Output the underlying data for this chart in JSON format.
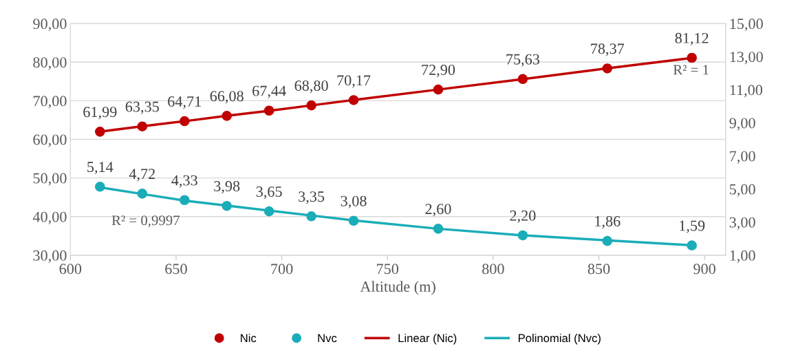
{
  "chart_data": {
    "type": "scatter",
    "xlabel": "Altitude (m)",
    "x": [
      614,
      634,
      654,
      674,
      694,
      714,
      734,
      774,
      814,
      854,
      894
    ],
    "xlim": [
      600,
      910
    ],
    "xticks": [
      600,
      650,
      700,
      750,
      800,
      850,
      900
    ],
    "ylim": [
      30,
      90
    ],
    "yticks": [
      {
        "value": 30,
        "label": "30,00"
      },
      {
        "value": 40,
        "label": "40,00"
      },
      {
        "value": 50,
        "label": "50,00"
      },
      {
        "value": 60,
        "label": "60,00"
      },
      {
        "value": 70,
        "label": "70,00"
      },
      {
        "value": 80,
        "label": "80,00"
      },
      {
        "value": 90,
        "label": "90,00"
      }
    ],
    "y2lim": [
      1,
      15
    ],
    "y2ticks": [
      {
        "value": 1,
        "label": "1,00"
      },
      {
        "value": 3,
        "label": "3,00"
      },
      {
        "value": 5,
        "label": "5,00"
      },
      {
        "value": 7,
        "label": "7,00"
      },
      {
        "value": 9,
        "label": "9,00"
      },
      {
        "value": 11,
        "label": "11,00"
      },
      {
        "value": 13,
        "label": "13,00"
      },
      {
        "value": 15,
        "label": "15,00"
      }
    ],
    "grid": "y",
    "legend": "bottom",
    "series": [
      {
        "name": "Nic",
        "marker": "circle",
        "color": "#c00000",
        "values": [
          61.99,
          63.35,
          64.71,
          66.08,
          67.44,
          68.8,
          70.17,
          72.9,
          75.63,
          78.37,
          81.12
        ],
        "value_labels": [
          "61,99",
          "63,35",
          "64,71",
          "66,08",
          "67,44",
          "68,80",
          "70,17",
          "72,90",
          "75,63",
          "78,37",
          "81,12"
        ]
      },
      {
        "name": "Nvc",
        "marker": "circle",
        "axis": "y2",
        "color": "#1aadb8",
        "values": [
          5.14,
          4.72,
          4.33,
          3.98,
          3.65,
          3.35,
          3.08,
          2.6,
          2.2,
          1.86,
          1.59
        ],
        "value_labels": [
          "5,14",
          "4,72",
          "4,33",
          "3,98",
          "3,65",
          "3,35",
          "3,08",
          "2,60",
          "2,20",
          "1,86",
          "1,59"
        ]
      },
      {
        "name": "Linear (Nic)",
        "type": "line",
        "line_style": "solid",
        "color": "#c00000",
        "values": [
          62.0,
          63.4,
          64.7,
          66.1,
          67.4,
          68.8,
          70.2,
          72.9,
          75.6,
          78.4,
          81.1
        ]
      },
      {
        "name": "Polinomial (Nvc)",
        "type": "line",
        "line_style": "solid",
        "axis": "y2",
        "color": "#1aadb8",
        "values": [
          5.1,
          4.7,
          4.3,
          4.0,
          3.7,
          3.4,
          3.1,
          2.6,
          2.2,
          1.9,
          1.6
        ]
      }
    ],
    "annotations": [
      "R² = 1",
      "R² = 0,9997"
    ]
  }
}
